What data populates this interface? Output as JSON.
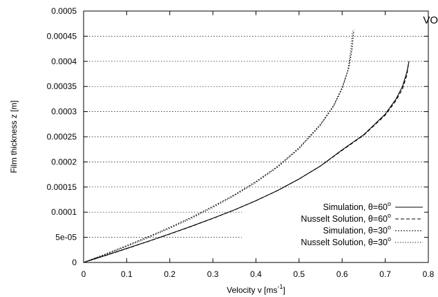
{
  "corner_text": "VO",
  "chart_data": {
    "type": "line",
    "title": "",
    "xlabel": "Velocity    v  [ms",
    "xlabel_sup": "-1",
    "xlabel_end": "]",
    "ylabel": "Film thickness     z  [m]",
    "xlim": [
      0,
      0.8
    ],
    "ylim": [
      0,
      0.0005
    ],
    "x_ticks": [
      0,
      0.1,
      0.2,
      0.3,
      0.4,
      0.5,
      0.6,
      0.7,
      0.8
    ],
    "x_tick_labels": [
      "0",
      "0.1",
      "0.2",
      "0.3",
      "0.4",
      "0.5",
      "0.6",
      "0.7",
      "0.8"
    ],
    "y_ticks": [
      0,
      5e-05,
      0.0001,
      0.00015,
      0.0002,
      0.00025,
      0.0003,
      0.00035,
      0.0004,
      0.00045,
      0.0005
    ],
    "y_tick_labels": [
      "0",
      "5e-05",
      "0.0001",
      "0.00015",
      "0.0002",
      "0.00025",
      "0.0003",
      "0.00035",
      "0.0004",
      "0.00045",
      "0.0005"
    ],
    "grid": "horizontal dotted",
    "legend_position": "bottom-right",
    "series": [
      {
        "name": "Simulation, θ=60",
        "name_sup": "o",
        "style": "solid",
        "color": "#000000",
        "points": [
          [
            0,
            0
          ],
          [
            0.05,
            1.38e-05
          ],
          [
            0.1,
            2.79e-05
          ],
          [
            0.15,
            4.21e-05
          ],
          [
            0.2,
            5.68e-05
          ],
          [
            0.25,
            7.2e-05
          ],
          [
            0.3,
            8.79e-05
          ],
          [
            0.35,
            0.0001045
          ],
          [
            0.4,
            0.000123
          ],
          [
            0.45,
            0.000143
          ],
          [
            0.5,
            0.000166
          ],
          [
            0.55,
            0.000192
          ],
          [
            0.6,
            0.000224
          ],
          [
            0.65,
            0.000254
          ],
          [
            0.7,
            0.000295
          ],
          [
            0.725,
            0.000325
          ],
          [
            0.74,
            0.00035
          ],
          [
            0.75,
            0.000378
          ],
          [
            0.755,
            0.0004
          ]
        ]
      },
      {
        "name": "Nusselt Solution, θ=60",
        "name_sup": "o",
        "style": "dashed",
        "color": "#000000",
        "points": [
          [
            0,
            0
          ],
          [
            0.05,
            1.35e-05
          ],
          [
            0.1,
            2.75e-05
          ],
          [
            0.15,
            4.18e-05
          ],
          [
            0.2,
            5.65e-05
          ],
          [
            0.25,
            7.17e-05
          ],
          [
            0.3,
            8.76e-05
          ],
          [
            0.35,
            0.0001045
          ],
          [
            0.4,
            0.0001228
          ],
          [
            0.45,
            0.000143
          ],
          [
            0.5,
            0.000166
          ],
          [
            0.55,
            0.000192
          ],
          [
            0.6,
            0.000223
          ],
          [
            0.65,
            0.000253
          ],
          [
            0.7,
            0.000293
          ],
          [
            0.725,
            0.000322
          ],
          [
            0.74,
            0.000345
          ],
          [
            0.75,
            0.000372
          ],
          [
            0.755,
            0.0004
          ]
        ]
      },
      {
        "name": "Simulation, θ=30",
        "name_sup": "o",
        "style": "dotted-fine",
        "color": "#000000",
        "points": [
          [
            0,
            0
          ],
          [
            0.05,
            1.65e-05
          ],
          [
            0.1,
            3.35e-05
          ],
          [
            0.15,
            5.12e-05
          ],
          [
            0.2,
            6.98e-05
          ],
          [
            0.25,
            8.96e-05
          ],
          [
            0.3,
            0.0001115
          ],
          [
            0.35,
            0.0001345
          ],
          [
            0.4,
            0.000161
          ],
          [
            0.45,
            0.000191
          ],
          [
            0.5,
            0.000228
          ],
          [
            0.55,
            0.000275
          ],
          [
            0.58,
            0.000312
          ],
          [
            0.6,
            0.000348
          ],
          [
            0.615,
            0.000385
          ],
          [
            0.623,
            0.000425
          ],
          [
            0.627,
            0.000462
          ]
        ]
      },
      {
        "name": "Nusselt Solution, θ=30",
        "name_sup": "o",
        "style": "dotted",
        "color": "#000000",
        "points": [
          [
            0,
            0
          ],
          [
            0.05,
            1.55e-05
          ],
          [
            0.1,
            3.18e-05
          ],
          [
            0.15,
            4.93e-05
          ],
          [
            0.2,
            6.78e-05
          ],
          [
            0.25,
            8.75e-05
          ],
          [
            0.3,
            0.0001092
          ],
          [
            0.35,
            0.000133
          ],
          [
            0.4,
            0.000159
          ],
          [
            0.45,
            0.000189
          ],
          [
            0.5,
            0.000226
          ],
          [
            0.55,
            0.000273
          ],
          [
            0.58,
            0.00031
          ],
          [
            0.6,
            0.000345
          ],
          [
            0.613,
            0.000382
          ],
          [
            0.62,
            0.000422
          ],
          [
            0.624,
            0.00046
          ]
        ]
      }
    ]
  }
}
